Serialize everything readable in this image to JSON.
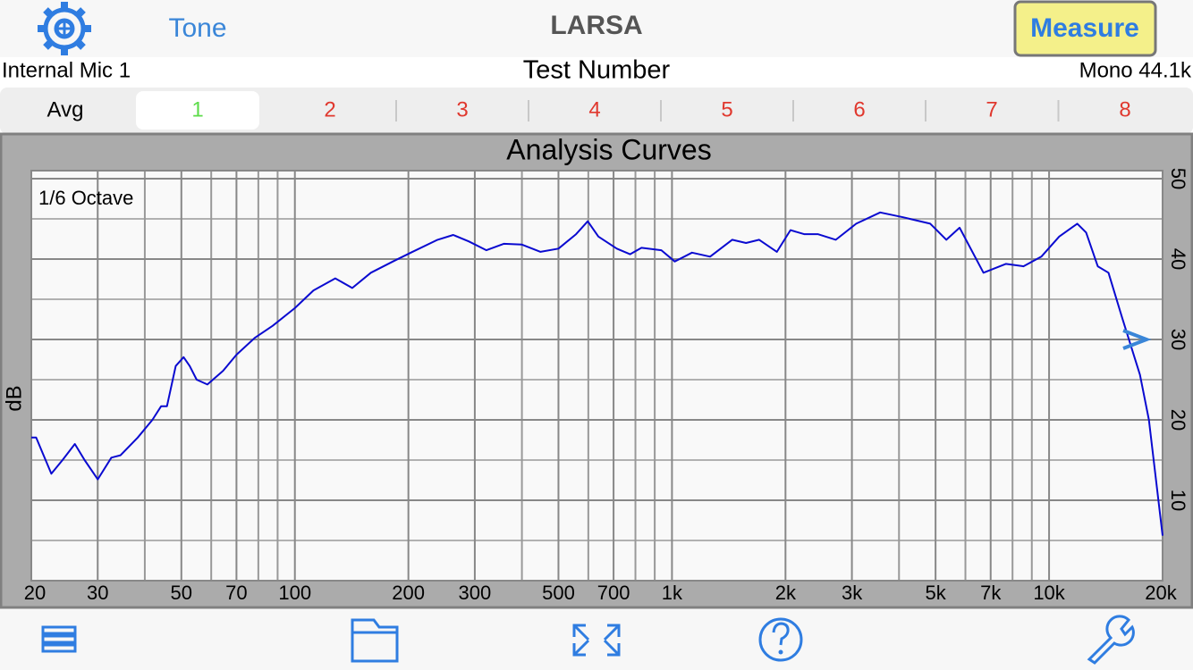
{
  "header": {
    "left_button": "Tone",
    "title": "LARSA",
    "right_button": "Measure"
  },
  "info_bar": {
    "input": "Internal Mic 1",
    "center": "Test Number",
    "format": "Mono 44.1k"
  },
  "tabs": [
    "Avg",
    "1",
    "2",
    "3",
    "4",
    "5",
    "6",
    "7",
    "8"
  ],
  "chart_data": {
    "type": "line",
    "title": "Analysis Curves",
    "annotation": "1/6 Octave",
    "y_label": "dB",
    "x_scale": "log",
    "xlim": [
      20,
      20000
    ],
    "xticks": [
      20,
      30,
      50,
      70,
      100,
      200,
      300,
      500,
      700,
      {
        "value": 1000,
        "label": "1k"
      },
      {
        "value": 2000,
        "label": "2k"
      },
      {
        "value": 3000,
        "label": "3k"
      },
      {
        "value": 5000,
        "label": "5k"
      },
      {
        "value": 7000,
        "label": "7k"
      },
      {
        "value": 10000,
        "label": "10k"
      },
      {
        "value": 20000,
        "label": "20k"
      }
    ],
    "xminor": [
      40,
      60,
      80,
      90,
      400,
      600,
      800,
      900,
      4000,
      6000,
      8000,
      9000
    ],
    "ylim": [
      0,
      51
    ],
    "yticks": [
      10,
      20,
      30,
      40,
      50
    ],
    "yminor": [
      5,
      15,
      25,
      35,
      45
    ],
    "grid": true,
    "series": [
      {
        "name": "Test Number",
        "color": "#0a0ad0",
        "x": [
          20,
          20.6,
          22.6,
          24.2,
          26.1,
          27.7,
          30,
          32.6,
          34.5,
          38.3,
          41.9,
          44.2,
          45.8,
          48.3,
          50.7,
          52.6,
          54.9,
          58.6,
          64.5,
          70,
          78.3,
          87.3,
          100,
          112,
          128,
          142,
          159,
          182,
          203,
          239,
          263,
          289,
          322,
          358,
          400,
          448,
          500,
          557,
          598,
          638,
          714,
          774,
          830,
          937,
          1017,
          1130,
          1262,
          1444,
          1572,
          1703,
          1897,
          2062,
          2240,
          2435,
          2720,
          3080,
          3565,
          4100,
          4840,
          5340,
          5790,
          6700,
          7680,
          8550,
          9540,
          10640,
          11880,
          12540,
          13460,
          14370,
          15600,
          17420,
          18400,
          20000
        ],
        "values": [
          17.8,
          17.8,
          13.3,
          15,
          17,
          15,
          12.6,
          15.3,
          15.6,
          17.8,
          20,
          21.7,
          21.7,
          26.7,
          27.8,
          26.7,
          25,
          24.4,
          26.1,
          28.1,
          30.2,
          31.7,
          33.9,
          36.1,
          37.6,
          36.4,
          38.3,
          39.7,
          40.8,
          42.4,
          43,
          42.2,
          41.1,
          41.9,
          41.8,
          40.9,
          41.3,
          43.1,
          44.7,
          42.8,
          41.3,
          40.6,
          41.4,
          41.1,
          39.7,
          40.8,
          40.3,
          42.4,
          42,
          42.4,
          40.9,
          43.6,
          43.1,
          43.1,
          42.4,
          44.4,
          45.8,
          45.2,
          44.4,
          42.4,
          43.9,
          38.3,
          39.4,
          39.1,
          40.3,
          42.8,
          44.4,
          43.3,
          39.1,
          38.3,
          32.8,
          25.6,
          20,
          5.6
        ]
      }
    ]
  }
}
